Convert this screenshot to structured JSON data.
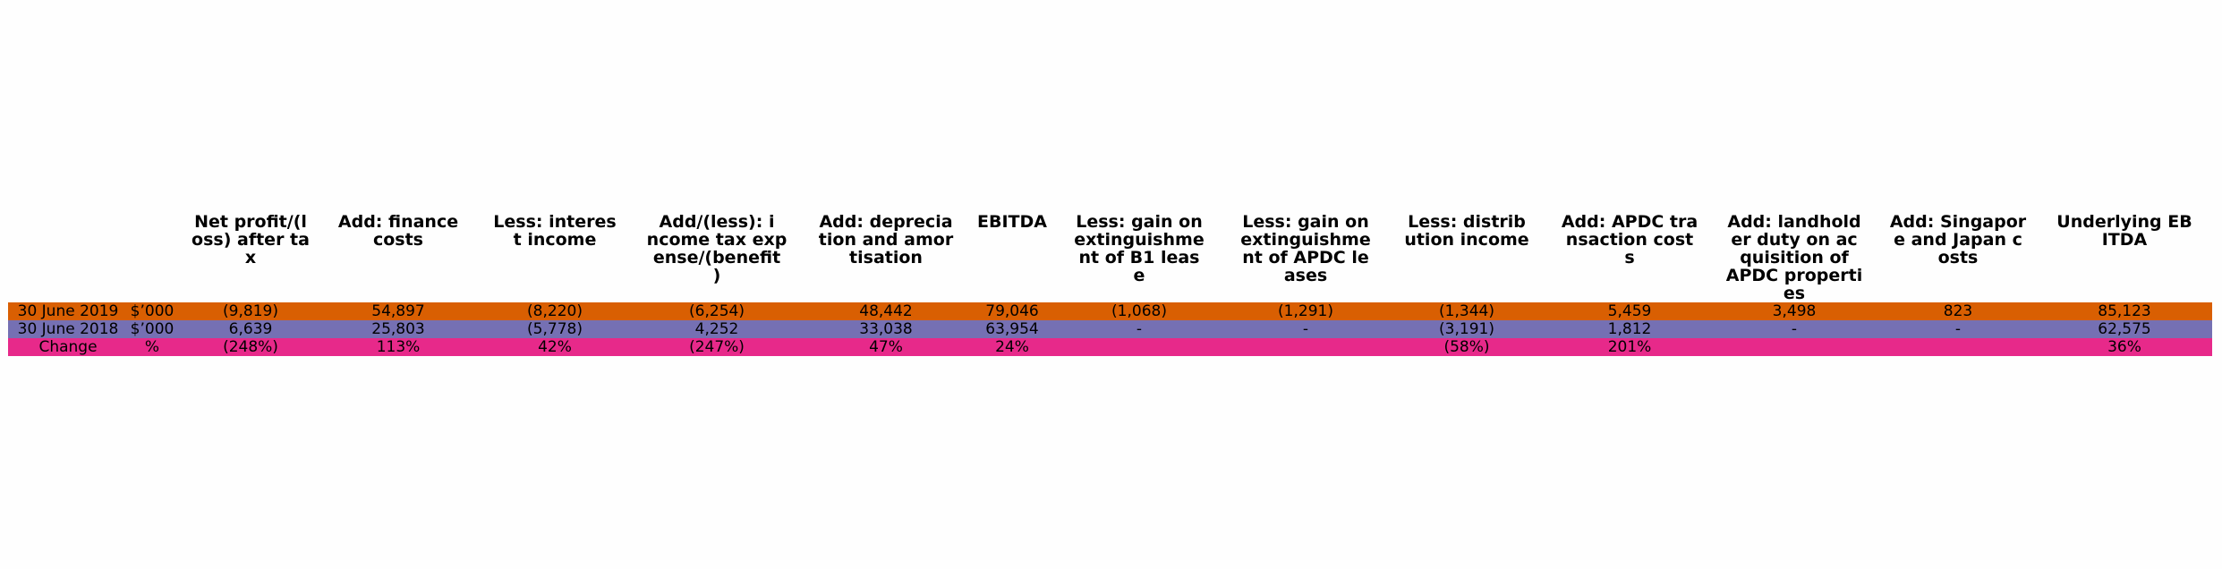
{
  "chart_data": {
    "type": "table",
    "columns": [
      "",
      "",
      "Net profit/(l\noss) after ta\nx",
      "Add: finance\ncosts",
      "Less: interes\nt income",
      "Add/(less): i\nncome tax exp\nense/(benefit\n)",
      "Add: deprecia\ntion and amor\ntisation",
      "EBITDA",
      "Less: gain on\nextinguishme\nnt of B1 leas\ne",
      "Less: gain on\nextinguishme\nnt of APDC le\nases",
      "Less: distrib\nution income",
      "Add: APDC tra\nnsaction cost\ns",
      "Add: landhold\ner duty on ac\nquisition of\nAPDC properti\nes",
      "Add: Singapor\ne and Japan c\nosts",
      "Underlying EB\nITDA"
    ],
    "rows": [
      {
        "color": "#d95f02",
        "cells": [
          "30 June 2019",
          "$’000",
          "(9,819)",
          "54,897",
          "(8,220)",
          "(6,254)",
          "48,442",
          "79,046",
          "(1,068)",
          "(1,291)",
          "(1,344)",
          "5,459",
          "3,498",
          "823",
          "85,123"
        ]
      },
      {
        "color": "#7570b3",
        "cells": [
          "30 June 2018",
          "$’000",
          "6,639",
          "25,803",
          "(5,778)",
          "4,252",
          "33,038",
          "63,954",
          "-",
          "-",
          "(3,191)",
          "1,812",
          "-",
          "-",
          "62,575"
        ]
      },
      {
        "color": "#e7298a",
        "cells": [
          "Change",
          "%",
          "(248%)",
          "113%",
          "42%",
          "(247%)",
          "47%",
          "24%",
          "",
          "",
          "(58%)",
          "201%",
          "",
          "",
          "36%"
        ]
      }
    ]
  }
}
